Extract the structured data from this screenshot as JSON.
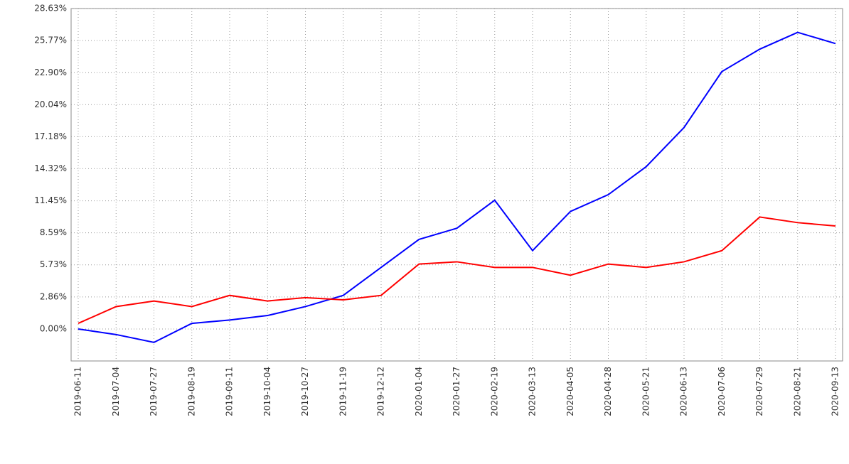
{
  "chart_data": {
    "type": "line",
    "categories": [
      "2019-06-11",
      "2019-07-04",
      "2019-07-27",
      "2019-08-19",
      "2019-09-11",
      "2019-10-04",
      "2019-10-27",
      "2019-11-19",
      "2019-12-12",
      "2020-01-04",
      "2020-01-27",
      "2020-02-19",
      "2020-03-13",
      "2020-04-05",
      "2020-04-28",
      "2020-05-21",
      "2020-06-13",
      "2020-07-06",
      "2020-07-29",
      "2020-08-21",
      "2020-09-13"
    ],
    "series": [
      {
        "color": "#0000ff",
        "values": [
          0,
          -0.5,
          -1.2,
          0.5,
          0.8,
          1.2,
          2.0,
          3.0,
          5.5,
          8.0,
          9.0,
          11.5,
          7.0,
          10.5,
          12.0,
          14.5,
          18.0,
          23.0,
          25.0,
          26.5,
          25.5
        ]
      },
      {
        "color": "#ff0000",
        "values": [
          0.5,
          2.0,
          2.5,
          2.0,
          3.0,
          2.5,
          2.8,
          2.6,
          3.0,
          5.8,
          6.0,
          5.5,
          5.5,
          4.8,
          5.8,
          5.5,
          6.0,
          7.0,
          10.0,
          9.5,
          9.2
        ]
      }
    ],
    "ylim": [
      -2.86,
      28.63
    ],
    "yticks": [
      {
        "value": 0,
        "label": "0.00%"
      },
      {
        "value": 2.86,
        "label": "2.86%"
      },
      {
        "value": 5.73,
        "label": "5.73%"
      },
      {
        "value": 8.59,
        "label": "8.59%"
      },
      {
        "value": 11.45,
        "label": "11.45%"
      },
      {
        "value": 14.32,
        "label": "14.32%"
      },
      {
        "value": 17.18,
        "label": "17.18%"
      },
      {
        "value": 20.04,
        "label": "20.04%"
      },
      {
        "value": 22.9,
        "label": "22.90%"
      },
      {
        "value": 25.77,
        "label": "25.77%"
      },
      {
        "value": 28.63,
        "label": "28.63%"
      }
    ],
    "grid": true
  }
}
